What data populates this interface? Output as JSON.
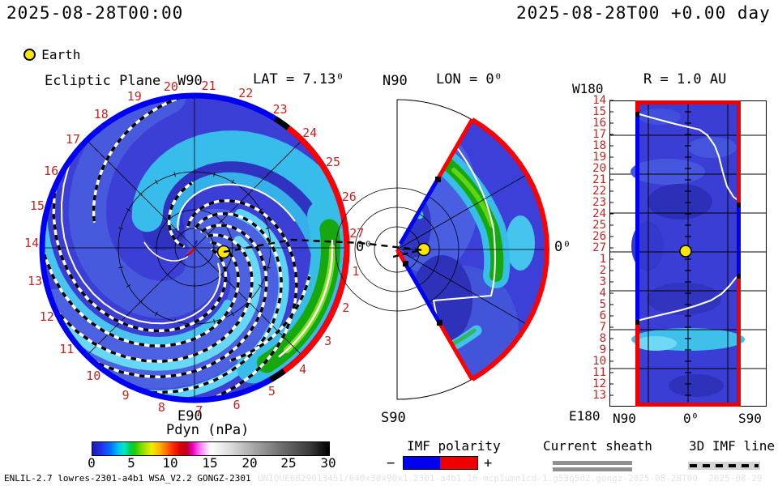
{
  "header": {
    "timestamp_left": "2025-08-28T00:00",
    "timestamp_right": "2025-08-28T00 +0.00 day"
  },
  "earth_legend": {
    "label": "Earth",
    "marker_color": "#ffe600"
  },
  "panels": {
    "ecliptic": {
      "title": "Ecliptic Plane",
      "lat_label": "LAT = 7.13⁰",
      "top_label": "W90",
      "bottom_label": "E90",
      "zero_label": "0⁰",
      "day_labels": [
        1,
        2,
        3,
        4,
        5,
        6,
        7,
        8,
        9,
        10,
        11,
        12,
        13,
        14,
        15,
        16,
        17,
        18,
        19,
        20,
        21,
        22,
        23,
        24,
        25,
        26,
        27
      ]
    },
    "meridional": {
      "lon_label": "LON = 0⁰",
      "top_label": "N90",
      "bottom_label": "S90",
      "zero_label": "0⁰"
    },
    "radial": {
      "title": "R = 1.0 AU",
      "top_left_label": "W180",
      "bottom_left_label": "E180",
      "x_labels": [
        "N90",
        "0⁰",
        "S90"
      ],
      "day_labels": [
        14,
        15,
        16,
        17,
        18,
        19,
        20,
        21,
        22,
        23,
        24,
        25,
        26,
        27,
        1,
        2,
        3,
        4,
        5,
        6,
        7,
        8,
        9,
        10,
        11,
        12,
        13
      ]
    }
  },
  "colorbar": {
    "label": "Pdyn (nPa)",
    "ticks": [
      0,
      5,
      10,
      15,
      20,
      25,
      30
    ],
    "min": 0,
    "max": 30
  },
  "legend": {
    "imf": {
      "label": "IMF polarity",
      "minus": "−",
      "plus": "+",
      "negative_color": "#0000ee",
      "positive_color": "#ee0000"
    },
    "sheath": {
      "label": "Current sheath",
      "color": "#909090"
    },
    "imf_line": {
      "label": "3D IMF line"
    }
  },
  "footer": {
    "model_info": "ENLIL-2.7 lowres-2301-a4b1 WSA_V2.2 GONGZ-2301",
    "watermark": "UNIQUE0829013451/640x30x90x1.2301-a4b1.16-mcp1umn1cd-1.g53q5d2.gongz-2025-08-28T00  2025-08-29"
  },
  "chart_data": [
    {
      "type": "heatmap",
      "title": "Ecliptic Plane",
      "projection": "polar disk centered on Sun",
      "quantity": "Pdyn (nPa)",
      "value_range": [
        0,
        30
      ],
      "lat": "LAT = 7.13⁰",
      "rim_day_ticks": [
        1,
        2,
        3,
        4,
        5,
        6,
        7,
        8,
        9,
        10,
        11,
        12,
        13,
        14,
        15,
        16,
        17,
        18,
        19,
        20,
        21,
        22,
        23,
        24,
        25,
        26,
        27
      ],
      "rim_imf_polarity": {
        "positive_red_arc_deg": [
          -54,
          52
        ],
        "negative_blue_arc_deg": [
          57,
          304
        ]
      },
      "features": [
        "Parker-spiral dynamic-pressure bands ~1-5 nPa (blue/cyan)",
        "high-pressure stream arc ~8-12 nPa (green) near rim in lower-right (east) sector",
        "white current-sheet spiral lines",
        "black/white dashed 3D IMF spiral lines",
        "yellow Earth marker east of Sun, dashed IMF line through Earth toward 0 degrees"
      ]
    },
    {
      "type": "heatmap",
      "title": "Meridional plane LON = 0⁰",
      "extent": "wedge from N90 toward S90, colored sector spans about +60 to -60 deg latitude",
      "quantity": "Pdyn (nPa)",
      "value_range": [
        0,
        30
      ],
      "features": [
        "green high-pressure arc in northern mid-latitudes",
        "white current-sheet line",
        "yellow Earth marker on equator near inner boundary",
        "outer boundary red (positive IMF), upper/lower edges partly blue (negative IMF)"
      ]
    },
    {
      "type": "heatmap",
      "title": "R = 1.0 AU",
      "x_axis": {
        "labels": [
          "N90",
          "0⁰",
          "S90"
        ]
      },
      "y_axis": {
        "day_ticks": [
          14,
          15,
          16,
          17,
          18,
          19,
          20,
          21,
          22,
          23,
          24,
          25,
          26,
          27,
          1,
          2,
          3,
          4,
          5,
          6,
          7,
          8,
          9,
          10,
          11,
          12,
          13
        ]
      },
      "quantity": "Pdyn (nPa)",
      "value_range": [
        0,
        30
      ],
      "features": [
        "blue ~1-3 nPa field with cyan band near days 8-10",
        "white current sheet crossing from north edge day 15 to south edge day 23, and from north day 6 to south day 2",
        "yellow Earth marker at latitude 0, day 27",
        "panel borders: top/bottom red, sides alternating blue/red IMF polarity"
      ]
    }
  ]
}
